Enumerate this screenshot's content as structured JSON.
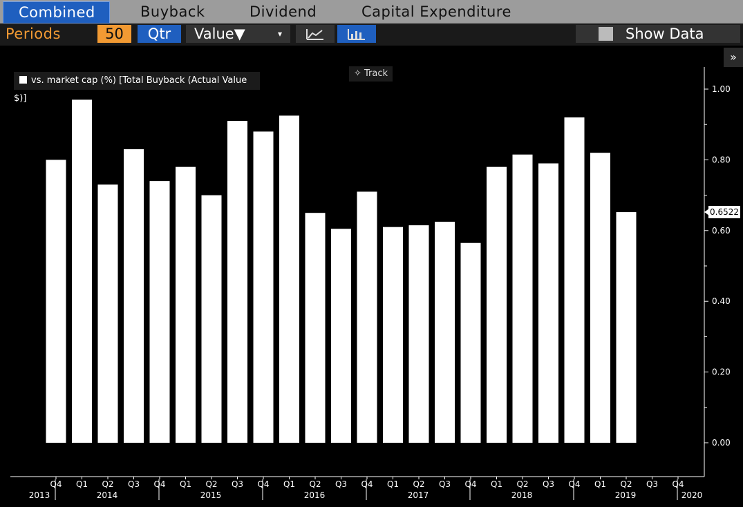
{
  "tabs": [
    "Combined",
    "Buyback",
    "Dividend",
    "Capital Expenditure"
  ],
  "toolbar": {
    "periods_label": "Periods",
    "periods_value": "50",
    "frequency": "Qtr",
    "value_label": "Value▼",
    "value_caret": "▾",
    "show_data": "Show Data",
    "expand": "»"
  },
  "legend": {
    "label": "vs. market cap (%) [Total Buyback (Actual Value $)]"
  },
  "track_label": "✧ Track",
  "last_value_label": "0.6522",
  "chart_data": {
    "type": "bar",
    "categories": [
      "Q4 2013",
      "Q1 2014",
      "Q2 2014",
      "Q3 2014",
      "Q4 2014",
      "Q1 2015",
      "Q2 2015",
      "Q3 2015",
      "Q4 2015",
      "Q1 2016",
      "Q2 2016",
      "Q3 2016",
      "Q4 2016",
      "Q1 2017",
      "Q2 2017",
      "Q3 2017",
      "Q4 2017",
      "Q1 2018",
      "Q2 2018",
      "Q3 2018",
      "Q4 2018",
      "Q1 2019",
      "Q2 2019"
    ],
    "values": [
      0.8,
      0.97,
      0.73,
      0.83,
      0.74,
      0.78,
      0.7,
      0.91,
      0.88,
      0.925,
      0.65,
      0.605,
      0.71,
      0.61,
      0.615,
      0.625,
      0.565,
      0.78,
      0.815,
      0.79,
      0.92,
      0.82,
      0.6522
    ],
    "series_name": "vs. market cap (%) [Total Buyback (Actual Value $)]",
    "ylim": [
      -0.1,
      1.05
    ],
    "yticks": [
      "0.00",
      "0.20",
      "0.40",
      "0.60",
      "0.80",
      "1.00"
    ],
    "x_quarter_labels": [
      "Q4",
      "Q1",
      "Q2",
      "Q3",
      "Q4",
      "Q1",
      "Q2",
      "Q3",
      "Q4",
      "Q1",
      "Q2",
      "Q3",
      "Q4",
      "Q1",
      "Q2",
      "Q3",
      "Q4",
      "Q1",
      "Q2",
      "Q3",
      "Q4",
      "Q1",
      "Q2",
      "Q3",
      "Q4"
    ],
    "x_year_labels": [
      "2013",
      "2014",
      "2015",
      "2016",
      "2017",
      "2018",
      "2019",
      "2020"
    ],
    "bar_color": "#ffffff",
    "background": "#000000"
  }
}
